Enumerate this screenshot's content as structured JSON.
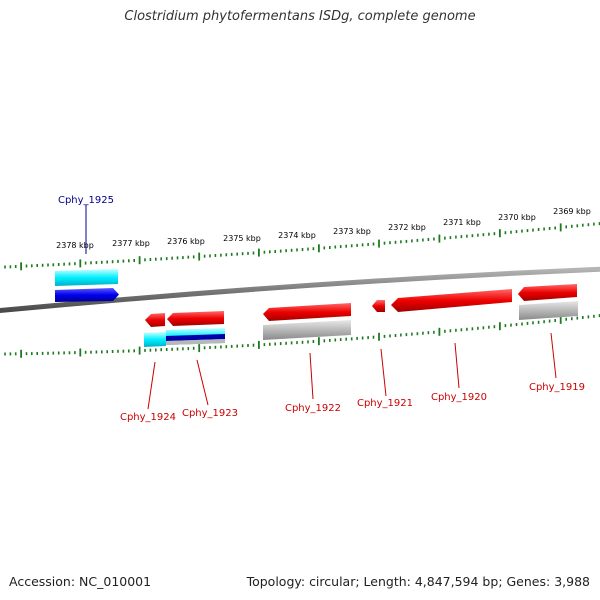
{
  "title": "Clostridium phytofermentans ISDg, complete genome",
  "footer": {
    "accession_label": "Accession:",
    "accession": "NC_010001",
    "topology_label": "Topology:",
    "topology": "circular",
    "length_label": "Length:",
    "length": "4,847,594 bp",
    "genes_label": "Genes:",
    "genes": "3,988"
  },
  "scale": {
    "unit": "kbp",
    "ticks": [
      "2378 kbp",
      "2377 kbp",
      "2376 kbp",
      "2375 kbp",
      "2374 kbp",
      "2373 kbp",
      "2372 kbp",
      "2371 kbp",
      "2370 kbp",
      "2369 kbp"
    ]
  },
  "genes": [
    {
      "id": "Cphy_1925",
      "strand": "+",
      "label_color": "#00008b"
    },
    {
      "id": "Cphy_1924",
      "strand": "-",
      "label_color": "#cc0000"
    },
    {
      "id": "Cphy_1923",
      "strand": "-",
      "label_color": "#cc0000"
    },
    {
      "id": "Cphy_1922",
      "strand": "-",
      "label_color": "#cc0000"
    },
    {
      "id": "Cphy_1921",
      "strand": "-",
      "label_color": "#cc0000"
    },
    {
      "id": "Cphy_1920",
      "strand": "-",
      "label_color": "#cc0000"
    },
    {
      "id": "Cphy_1919",
      "strand": "-",
      "label_color": "#cc0000"
    }
  ],
  "colors": {
    "forward_gene": "#0000ee",
    "reverse_gene": "#ee0000",
    "forward_cds": "#00ffff",
    "reverse_cds": "#b0b0b0",
    "backbone": "#808080",
    "tick": "#1f7a1f"
  }
}
